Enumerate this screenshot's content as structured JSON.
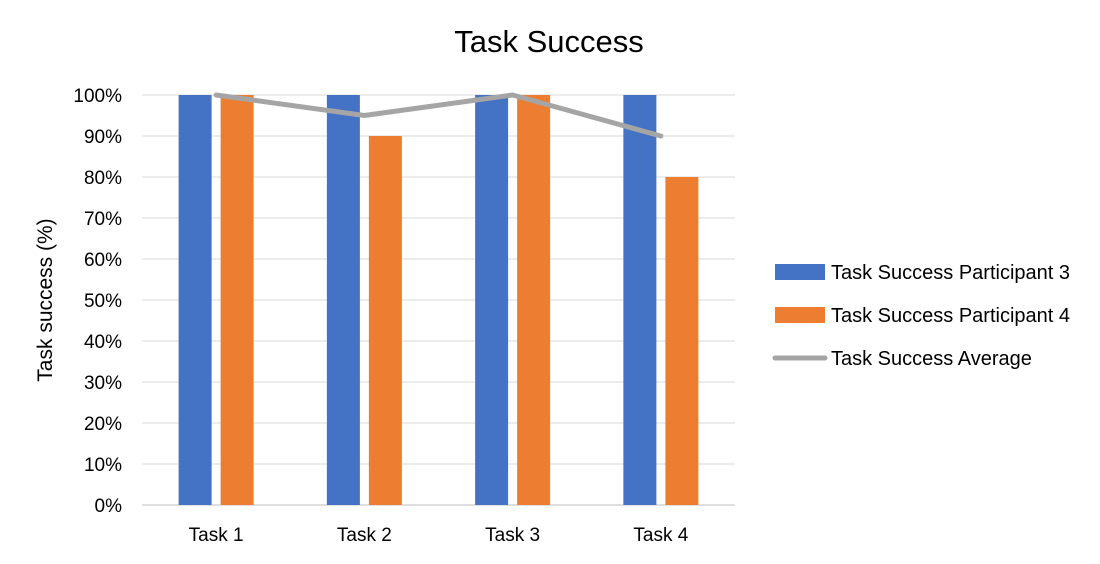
{
  "chart_data": {
    "type": "bar",
    "title": "Task Success",
    "xlabel": "",
    "ylabel": "Task success (%)",
    "categories": [
      "Task 1",
      "Task 2",
      "Task 3",
      "Task 4"
    ],
    "ylim": [
      0,
      100
    ],
    "yticks": [
      0,
      10,
      20,
      30,
      40,
      50,
      60,
      70,
      80,
      90,
      100
    ],
    "ytick_labels": [
      "0%",
      "10%",
      "20%",
      "30%",
      "40%",
      "50%",
      "60%",
      "70%",
      "80%",
      "90%",
      "100%"
    ],
    "grid": true,
    "legend_position": "right",
    "series": [
      {
        "name": "Task Success Participant 3",
        "type": "bar",
        "color": "#4472C4",
        "values": [
          100,
          100,
          100,
          100
        ]
      },
      {
        "name": "Task Success Participant 4",
        "type": "bar",
        "color": "#ED7D31",
        "values": [
          100,
          90,
          100,
          80
        ]
      },
      {
        "name": "Task Success Average",
        "type": "line",
        "color": "#A5A5A5",
        "values": [
          100,
          95,
          100,
          90
        ]
      }
    ]
  }
}
